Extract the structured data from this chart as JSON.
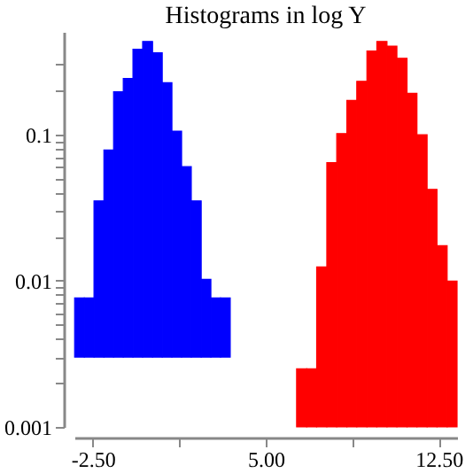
{
  "chart_data": {
    "type": "histogram",
    "title": "Histograms in log Y",
    "log": true,
    "grid": false,
    "bins": [
      -3.29,
      -2.87,
      -2.45,
      -2.02,
      -1.6,
      -1.18,
      -0.76,
      -0.34,
      0.09,
      0.51,
      0.93,
      1.35,
      1.77,
      2.2,
      2.62,
      3.04,
      3.46,
      6.34,
      6.78,
      7.21,
      7.65,
      8.08,
      8.52,
      8.95,
      9.39,
      9.82,
      10.26,
      10.69,
      11.13,
      11.56,
      12.0,
      12.43,
      12.87,
      13.3
    ],
    "values": [
      0.0046,
      0.0046,
      0.032,
      0.075,
      0.192,
      0.237,
      0.377,
      0.427,
      0.357,
      0.222,
      0.102,
      0.057,
      0.032,
      0.0072,
      0.0046,
      0.0046,
      null,
      0.0015,
      0.0015,
      0.0114,
      0.063,
      0.1,
      0.169,
      0.229,
      0.369,
      0.429,
      0.399,
      0.329,
      0.189,
      0.098,
      0.041,
      0.0163,
      0.0089
    ],
    "base": [
      0.003,
      0.003,
      0.003,
      0.003,
      0.003,
      0.003,
      0.003,
      0.003,
      0.003,
      0.003,
      0.003,
      0.003,
      0.003,
      0.003,
      0.003,
      0.003,
      null,
      0.001,
      0.001,
      0.001,
      0.001,
      0.001,
      0.001,
      0.001,
      0.001,
      0.001,
      0.001,
      0.001,
      0.001,
      0.001,
      0.001,
      0.001,
      0.001
    ],
    "colors": [
      "#0000ff",
      "#0000ff",
      "#0000ff",
      "#0000ff",
      "#0000ff",
      "#0000ff",
      "#0000ff",
      "#0000ff",
      "#0000ff",
      "#0000ff",
      "#0000ff",
      "#0000ff",
      "#0000ff",
      "#0000ff",
      "#0000ff",
      "#0000ff",
      null,
      "#ff0000",
      "#ff0000",
      "#ff0000",
      "#ff0000",
      "#ff0000",
      "#ff0000",
      "#ff0000",
      "#ff0000",
      "#ff0000",
      "#ff0000",
      "#ff0000",
      "#ff0000",
      "#ff0000",
      "#ff0000",
      "#ff0000",
      "#ff0000"
    ],
    "xlim": [
      -3.3,
      13.3
    ],
    "xticks": [
      {
        "value": -2.5,
        "label": "-2.50"
      },
      {
        "value": 1.25,
        "label": null
      },
      {
        "value": 5,
        "label": "5.00"
      },
      {
        "value": 8.75,
        "label": null
      },
      {
        "value": 12.5,
        "label": "12.50"
      }
    ],
    "ylim": [
      0.001,
      0.5
    ],
    "yticks": [
      0.001,
      {
        "value": 0.002,
        "label": null
      },
      {
        "value": 0.003,
        "label": null
      },
      {
        "value": 0.004,
        "label": null
      },
      {
        "value": 0.005,
        "label": null
      },
      {
        "value": 0.006,
        "label": null
      },
      {
        "value": 0.007,
        "label": null
      },
      {
        "value": 0.008,
        "label": null
      },
      {
        "value": 0.009,
        "label": null
      },
      0.01,
      {
        "value": 0.02,
        "label": null
      },
      {
        "value": 0.03,
        "label": null
      },
      {
        "value": 0.04,
        "label": null
      },
      {
        "value": 0.05,
        "label": null
      },
      {
        "value": 0.06,
        "label": null
      },
      {
        "value": 0.07,
        "label": null
      },
      {
        "value": 0.08,
        "label": null
      },
      {
        "value": 0.09,
        "label": null
      },
      0.1,
      {
        "value": 0.2,
        "label": null
      },
      {
        "value": 0.3,
        "label": null
      }
    ]
  }
}
